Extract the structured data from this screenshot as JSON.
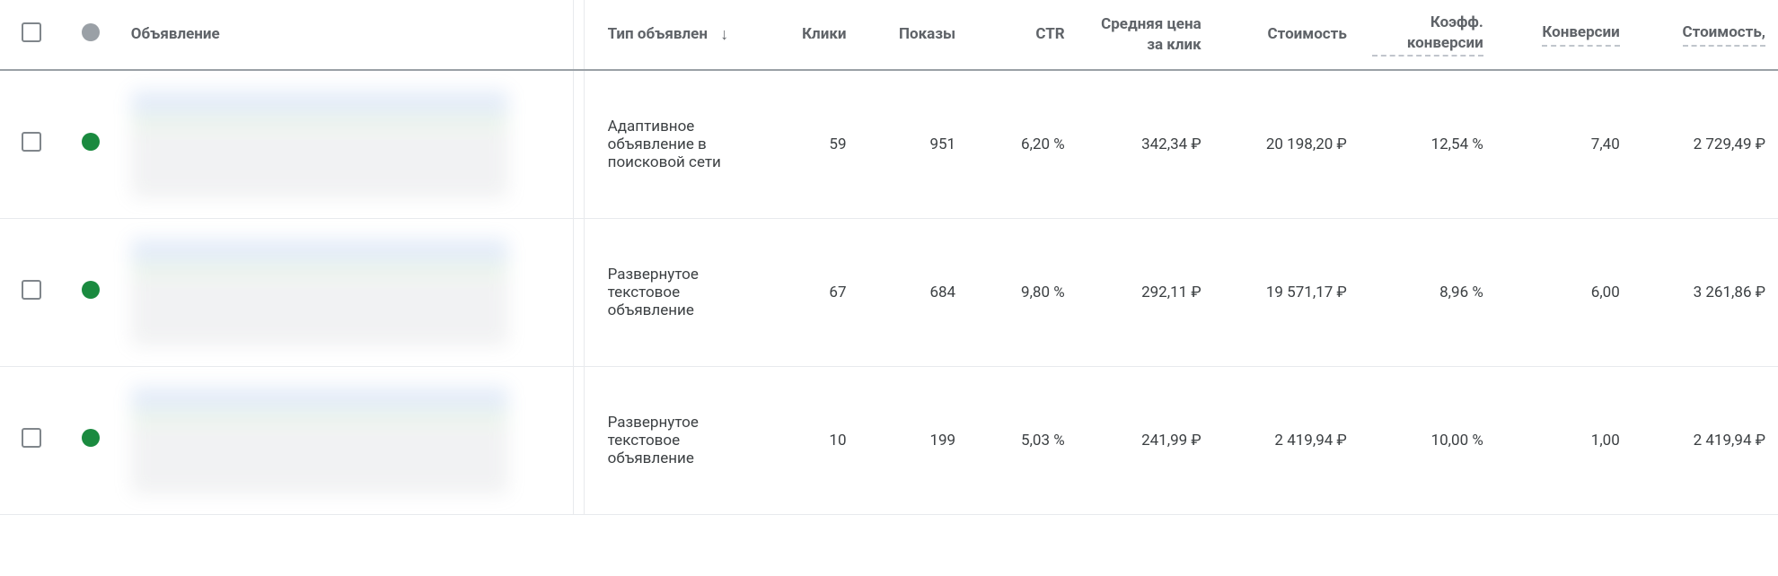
{
  "colors": {
    "text": "#3c4043",
    "header_text": "#5f6368",
    "border_header": "#9aa0a6",
    "row_border": "#e8eaed",
    "checkbox_border": "#80868b",
    "status_grey": "#9aa0a6",
    "status_green": "#1a8a3f",
    "dotted_underline": "#c0c5cc"
  },
  "columns": {
    "ad": "Объявление",
    "ad_type": "Тип объявлен",
    "clicks": "Клики",
    "impressions": "Показы",
    "ctr": "CTR",
    "avg_cpc": "Средняя цена за клик",
    "cost": "Стоимость",
    "conv_rate": "Коэфф. конверсии",
    "conversions": "Конверсии",
    "cost_per_conv": "Стоимость,"
  },
  "sort": {
    "column": "ad_type",
    "direction": "desc",
    "arrow": "↓"
  },
  "rows": [
    {
      "status_color": "#1a8a3f",
      "ad_type": "Адаптивное объявление в поисковой сети",
      "clicks": "59",
      "impressions": "951",
      "ctr": "6,20 %",
      "avg_cpc": "342,34 ₽",
      "cost": "20 198,20 ₽",
      "conv_rate": "12,54 %",
      "conversions": "7,40",
      "cost_per_conv": "2 729,49 ₽"
    },
    {
      "status_color": "#1a8a3f",
      "ad_type": "Развернутое текстовое объявление",
      "clicks": "67",
      "impressions": "684",
      "ctr": "9,80 %",
      "avg_cpc": "292,11 ₽",
      "cost": "19 571,17 ₽",
      "conv_rate": "8,96 %",
      "conversions": "6,00",
      "cost_per_conv": "3 261,86 ₽"
    },
    {
      "status_color": "#1a8a3f",
      "ad_type": "Развернутое текстовое объявление",
      "clicks": "10",
      "impressions": "199",
      "ctr": "5,03 %",
      "avg_cpc": "241,99 ₽",
      "cost": "2 419,94 ₽",
      "conv_rate": "10,00 %",
      "conversions": "1,00",
      "cost_per_conv": "2 419,94 ₽"
    }
  ]
}
